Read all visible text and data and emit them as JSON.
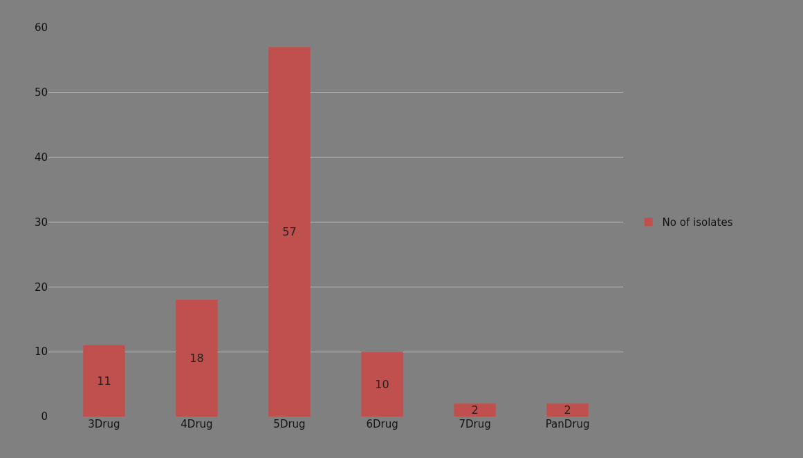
{
  "chart_data": {
    "type": "bar",
    "categories": [
      "3Drug",
      "4Drug",
      "5Drug",
      "6Drug",
      "7Drug",
      "PanDrug"
    ],
    "series": [
      {
        "name": "No of isolates",
        "color": "#c0504d",
        "values": [
          11,
          18,
          57,
          10,
          2,
          2
        ]
      }
    ],
    "ylim": [
      0,
      60
    ],
    "yticks": [
      0,
      10,
      20,
      30,
      40,
      50,
      60
    ],
    "grid": "y",
    "legend": "right",
    "data_labels": true
  }
}
